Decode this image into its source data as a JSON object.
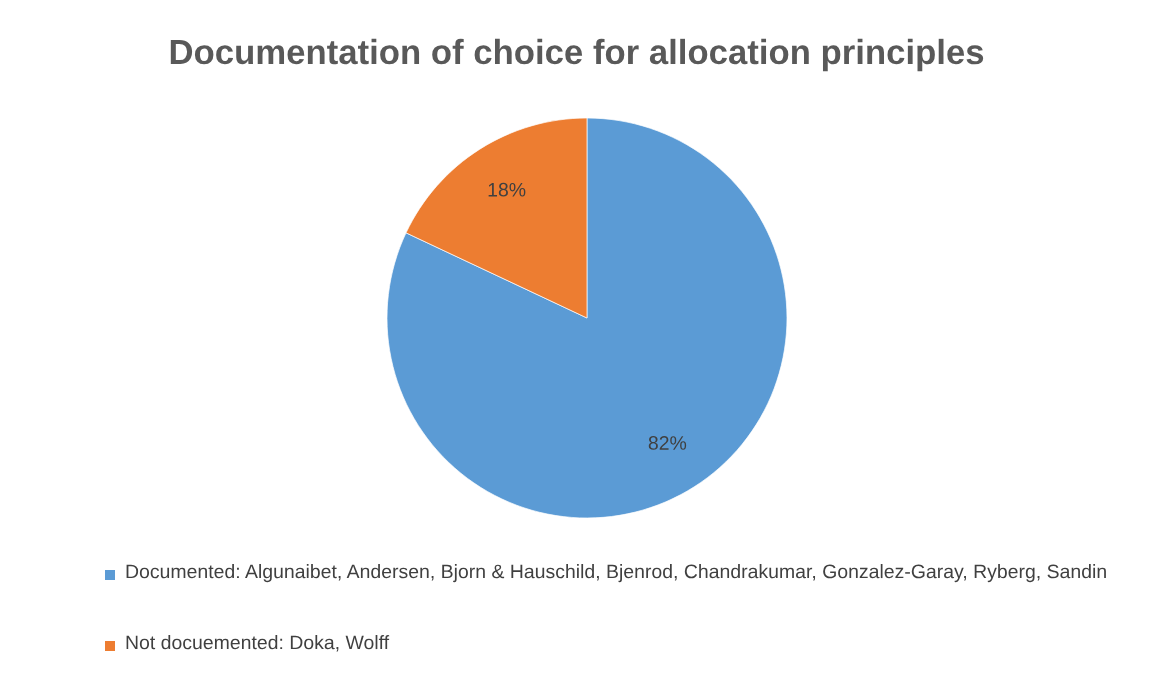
{
  "chart_data": {
    "type": "pie",
    "title": "Documentation of choice for allocation principles",
    "categories": [
      "Documented: Algunaibet, Andersen, Bjorn & Hauschild, Bjenrod, Chandrakumar, Gonzalez-Garay, Ryberg, Sandin",
      "Not docuemented: Doka, Wolff"
    ],
    "values": [
      82,
      18
    ],
    "colors": [
      "#5b9bd5",
      "#ed7d31"
    ],
    "value_labels": [
      "82%",
      "18%"
    ],
    "legend": "bottom"
  }
}
